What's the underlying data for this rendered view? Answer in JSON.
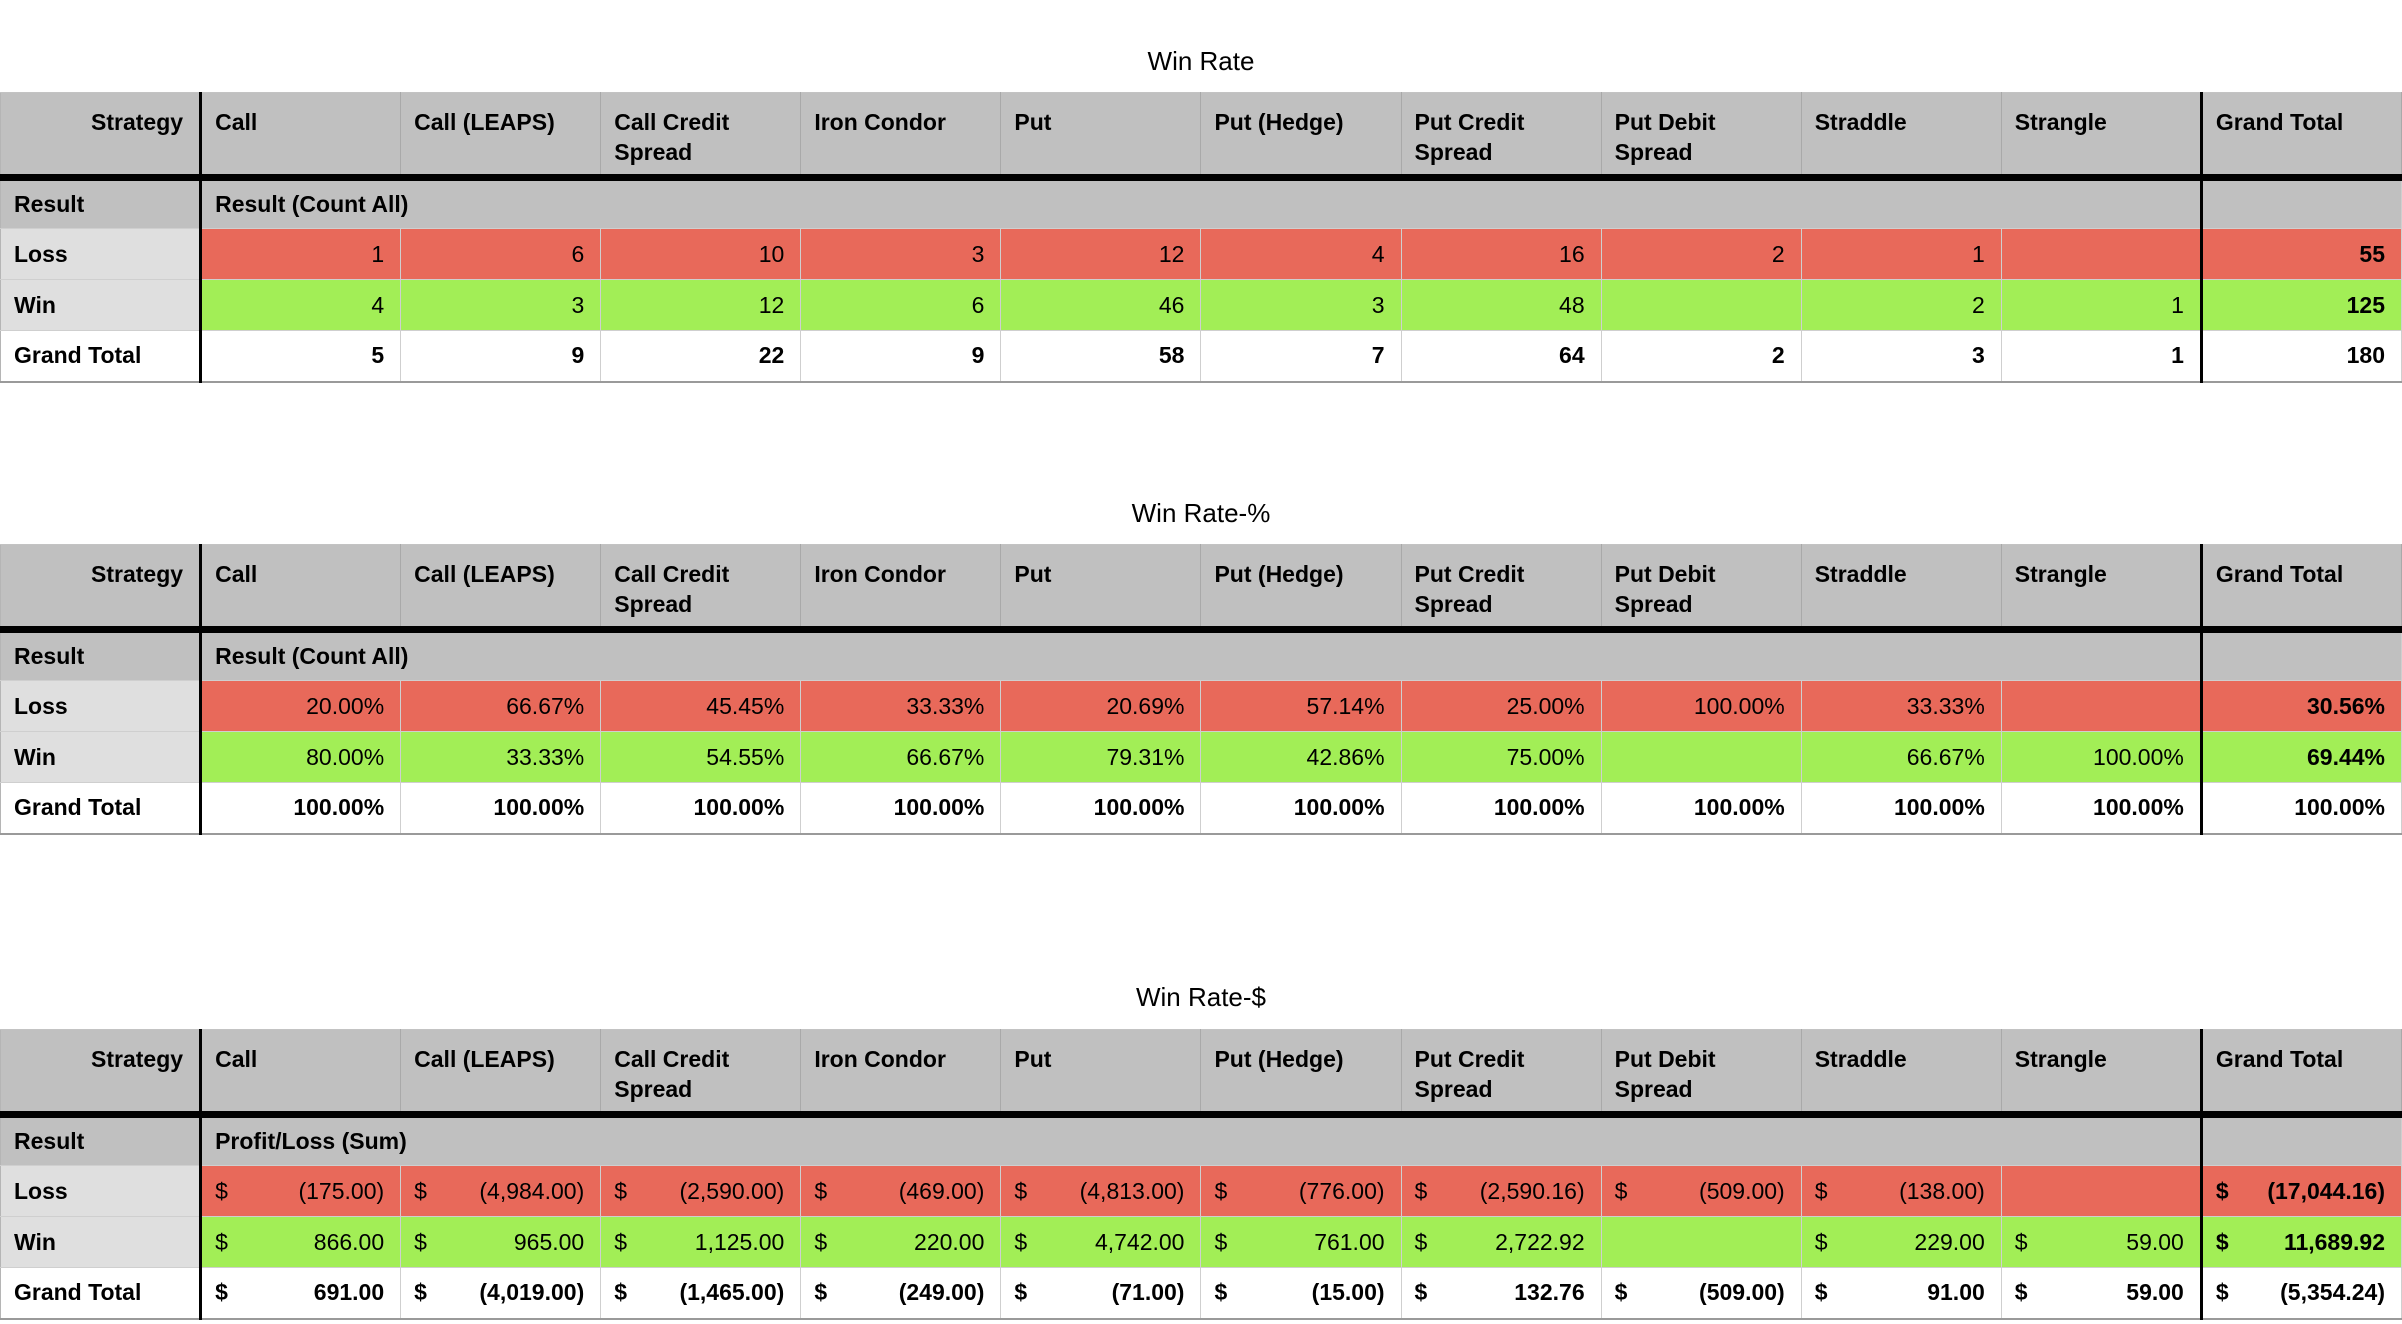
{
  "page": {
    "background": "#ffffff"
  },
  "colors": {
    "header_bg": "#c0c0c0",
    "row_label_bg": "#dfdfdf",
    "loss_bg": "#e8695a",
    "win_bg": "#a2ee56",
    "total_bg": "#ffffff",
    "grid_line": "#cfcfcf",
    "black_rule": "#000000"
  },
  "tables": [
    {
      "title": "Win Rate",
      "corner_label": "Strategy",
      "columns": [
        "Call",
        "Call (LEAPS)",
        "Call Credit Spread",
        "Iron Condor",
        "Put",
        "Put (Hedge)",
        "Put Credit Spread",
        "Put Debit Spread",
        "Straddle",
        "Strangle",
        "Grand Total"
      ],
      "result_label": "Result",
      "result_value": "Result (Count All)",
      "currency": false,
      "rows": [
        {
          "label": "Loss",
          "kind": "loss",
          "cells": [
            "1",
            "6",
            "10",
            "3",
            "12",
            "4",
            "16",
            "2",
            "1",
            "",
            "55"
          ]
        },
        {
          "label": "Win",
          "kind": "win",
          "cells": [
            "4",
            "3",
            "12",
            "6",
            "46",
            "3",
            "48",
            "",
            "2",
            "1",
            "125"
          ]
        },
        {
          "label": "Grand Total",
          "kind": "total",
          "cells": [
            "5",
            "9",
            "22",
            "9",
            "58",
            "7",
            "64",
            "2",
            "3",
            "1",
            "180"
          ]
        }
      ]
    },
    {
      "title": "Win Rate-%",
      "corner_label": "Strategy",
      "columns": [
        "Call",
        "Call (LEAPS)",
        "Call Credit Spread",
        "Iron Condor",
        "Put",
        "Put (Hedge)",
        "Put Credit Spread",
        "Put Debit Spread",
        "Straddle",
        "Strangle",
        "Grand Total"
      ],
      "result_label": "Result",
      "result_value": "Result (Count All)",
      "currency": false,
      "rows": [
        {
          "label": "Loss",
          "kind": "loss",
          "cells": [
            "20.00%",
            "66.67%",
            "45.45%",
            "33.33%",
            "20.69%",
            "57.14%",
            "25.00%",
            "100.00%",
            "33.33%",
            "",
            "30.56%"
          ]
        },
        {
          "label": "Win",
          "kind": "win",
          "cells": [
            "80.00%",
            "33.33%",
            "54.55%",
            "66.67%",
            "79.31%",
            "42.86%",
            "75.00%",
            "",
            "66.67%",
            "100.00%",
            "69.44%"
          ]
        },
        {
          "label": "Grand Total",
          "kind": "total",
          "cells": [
            "100.00%",
            "100.00%",
            "100.00%",
            "100.00%",
            "100.00%",
            "100.00%",
            "100.00%",
            "100.00%",
            "100.00%",
            "100.00%",
            "100.00%"
          ]
        }
      ]
    },
    {
      "title": "Win Rate-$",
      "corner_label": "Strategy",
      "columns": [
        "Call",
        "Call (LEAPS)",
        "Call Credit Spread",
        "Iron Condor",
        "Put",
        "Put (Hedge)",
        "Put Credit Spread",
        "Put Debit Spread",
        "Straddle",
        "Strangle",
        "Grand Total"
      ],
      "result_label": "Result",
      "result_value": "Profit/Loss (Sum)",
      "currency": true,
      "currency_symbol": "$",
      "rows": [
        {
          "label": "Loss",
          "kind": "loss",
          "cells": [
            "(175.00)",
            "(4,984.00)",
            "(2,590.00)",
            "(469.00)",
            "(4,813.00)",
            "(776.00)",
            "(2,590.16)",
            "(509.00)",
            "(138.00)",
            "",
            "(17,044.16)"
          ]
        },
        {
          "label": "Win",
          "kind": "win",
          "cells": [
            "866.00",
            "965.00",
            "1,125.00",
            "220.00",
            "4,742.00",
            "761.00",
            "2,722.92",
            "",
            "229.00",
            "59.00",
            "11,689.92"
          ]
        },
        {
          "label": "Grand Total",
          "kind": "total",
          "cells": [
            "691.00",
            "(4,019.00)",
            "(1,465.00)",
            "(249.00)",
            "(71.00)",
            "(15.00)",
            "132.76",
            "(509.00)",
            "91.00",
            "59.00",
            "(5,354.24)"
          ]
        }
      ]
    }
  ]
}
